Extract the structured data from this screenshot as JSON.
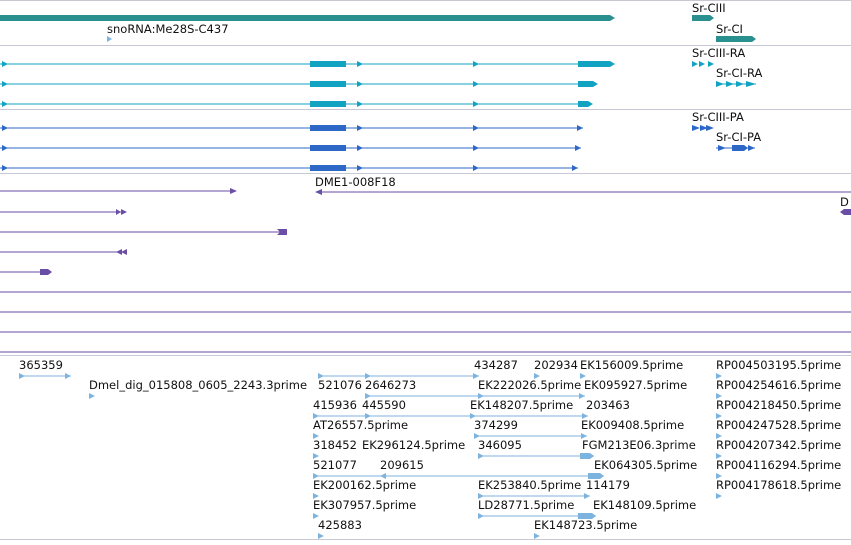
{
  "colors": {
    "bg": "#ffffff",
    "separator": "#b8b8c8",
    "gene": "#2a8f8f",
    "transcript_ra": "#12a3c3",
    "transcript_pa": "#2d68c7",
    "insertion": "#6a4ea5",
    "est": "#7db3df",
    "text": "#111111"
  },
  "tracks": {
    "genes": {
      "labels": [
        "snoRNA:Me28S-C437",
        "Sr-CIII",
        "Sr-CI"
      ]
    },
    "transcripts": {
      "labels": [
        "Sr-CIII-RA",
        "Sr-CI-RA"
      ]
    },
    "proteins": {
      "labels": [
        "Sr-CIII-PA",
        "Sr-CI-PA"
      ]
    },
    "insertions": {
      "labels": [
        "DME1-008F18",
        "D"
      ]
    },
    "ests": {
      "labels": [
        "365359",
        "Dmel_dig_015808_0605_2243.3prime",
        "521076",
        "2646273",
        "434287",
        "202934",
        "EK156009.5prime",
        "RP004503195.5prime",
        "EK222026.5prime",
        "EK095927.5prime",
        "RP004254616.5prime",
        "415936",
        "445590",
        "EK148207.5prime",
        "203463",
        "RP004218450.5prime",
        "AT26557.5prime",
        "374299",
        "EK009408.5prime",
        "RP004247528.5prime",
        "318452",
        "EK296124.5prime",
        "346095",
        "FGM213E06.3prime",
        "RP004207342.5prime",
        "521077",
        "209615",
        "EK064305.5prime",
        "RP004116294.5prime",
        "EK200162.5prime",
        "EK253840.5prime",
        "114179",
        "RP004178618.5prime",
        "EK307957.5prime",
        "LD28771.5prime",
        "EK148109.5prime",
        "425883",
        "EK148723.5prime"
      ]
    }
  }
}
